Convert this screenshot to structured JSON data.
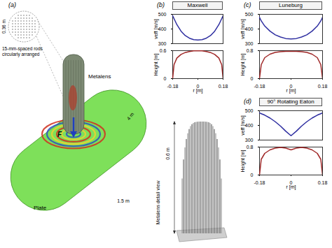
{
  "figure": {
    "panel_a": {
      "letter": "(a)",
      "inset_size": "0.36 m",
      "inset_note": "15-mm-spaced rods circularly arranged",
      "lens_label": "Metalens",
      "force_label": "F",
      "plate_length": "4 m",
      "plate_width": "1.5 m",
      "plate_label": "Plate"
    },
    "panels": [
      {
        "letter": "(b)",
        "detail_label": "Metalens detail view",
        "detail_height": "0.6 m"
      },
      {
        "letter": "(c)"
      },
      {
        "letter": "(d)"
      }
    ]
  },
  "chart_data": [
    {
      "type": "line",
      "title": "Maxwell",
      "ylabel": "veff [m/s]",
      "x": [
        -0.18,
        -0.17,
        -0.15,
        -0.12,
        -0.09,
        -0.06,
        -0.03,
        0,
        0.03,
        0.06,
        0.09,
        0.12,
        0.15,
        0.17,
        0.18
      ],
      "values": [
        490,
        470,
        430,
        385,
        355,
        337,
        327,
        325,
        327,
        337,
        355,
        385,
        430,
        470,
        490
      ],
      "color": "#2e2ea0",
      "xlim": [
        -0.18,
        0.18
      ],
      "ylim": [
        300,
        500
      ],
      "yticks": [
        300,
        400,
        500
      ],
      "tick_labels": "y"
    },
    {
      "type": "line",
      "xlabel": "r [m]",
      "ylabel": "Height [m]",
      "x": [
        -0.18,
        -0.17,
        -0.15,
        -0.12,
        -0.09,
        -0.06,
        -0.03,
        0,
        0.03,
        0.06,
        0.09,
        0.12,
        0.15,
        0.17,
        0.18
      ],
      "values": [
        0,
        0.3,
        0.44,
        0.52,
        0.56,
        0.58,
        0.595,
        0.6,
        0.595,
        0.58,
        0.56,
        0.52,
        0.44,
        0.3,
        0
      ],
      "color": "#a02828",
      "xlim": [
        -0.18,
        0.18
      ],
      "xticks": [
        -0.18,
        0,
        0.18
      ],
      "ylim": [
        0,
        0.6
      ],
      "yticks": [
        0,
        0.6
      ]
    },
    {
      "type": "line",
      "title": "Luneburg",
      "ylabel": "veff [m/s]",
      "x": [
        -0.18,
        -0.17,
        -0.15,
        -0.12,
        -0.09,
        -0.06,
        -0.03,
        0,
        0.03,
        0.06,
        0.09,
        0.12,
        0.15,
        0.17,
        0.18
      ],
      "values": [
        480,
        455,
        420,
        385,
        360,
        345,
        335,
        332,
        335,
        345,
        360,
        385,
        420,
        455,
        480
      ],
      "color": "#2e2ea0",
      "xlim": [
        -0.18,
        0.18
      ],
      "ylim": [
        300,
        500
      ],
      "yticks": [
        300,
        400,
        500
      ],
      "tick_labels": "y"
    },
    {
      "type": "line",
      "xlabel": "r [m]",
      "ylabel": "Height [m]",
      "x": [
        -0.18,
        -0.17,
        -0.15,
        -0.12,
        -0.09,
        -0.06,
        -0.03,
        0,
        0.03,
        0.06,
        0.09,
        0.12,
        0.15,
        0.17,
        0.18
      ],
      "values": [
        0,
        0.4,
        0.6,
        0.7,
        0.75,
        0.77,
        0.78,
        0.78,
        0.78,
        0.77,
        0.75,
        0.7,
        0.6,
        0.4,
        0
      ],
      "color": "#a02828",
      "xlim": [
        -0.18,
        0.18
      ],
      "xticks": [
        -0.18,
        0,
        0.18
      ],
      "ylim": [
        0,
        0.8
      ],
      "yticks": [
        0,
        0.8
      ]
    },
    {
      "type": "line",
      "title": "90° Rotating Eaton",
      "ylabel": "veff [m/s]",
      "x": [
        -0.18,
        -0.17,
        -0.15,
        -0.12,
        -0.09,
        -0.06,
        -0.03,
        0,
        0.03,
        0.06,
        0.09,
        0.12,
        0.15,
        0.17,
        0.18
      ],
      "values": [
        485,
        480,
        470,
        450,
        425,
        395,
        360,
        330,
        360,
        395,
        425,
        450,
        470,
        480,
        485
      ],
      "color": "#2e2ea0",
      "xlim": [
        -0.18,
        0.18
      ],
      "ylim": [
        300,
        500
      ],
      "yticks": [
        300,
        400,
        500
      ],
      "tick_labels": "y"
    },
    {
      "type": "line",
      "xlabel": "r [m]",
      "ylabel": "Height [m]",
      "x": [
        -0.18,
        -0.17,
        -0.15,
        -0.12,
        -0.09,
        -0.06,
        -0.03,
        0,
        0.03,
        0.06,
        0.09,
        0.12,
        0.15,
        0.17,
        0.18
      ],
      "values": [
        0,
        0.45,
        0.62,
        0.72,
        0.77,
        0.79,
        0.77,
        0.72,
        0.77,
        0.79,
        0.77,
        0.72,
        0.62,
        0.45,
        0
      ],
      "color": "#a02828",
      "xlim": [
        -0.18,
        0.18
      ],
      "xticks": [
        -0.18,
        0,
        0.18
      ],
      "ylim": [
        0,
        0.8
      ],
      "yticks": [
        0,
        0.8
      ]
    }
  ]
}
